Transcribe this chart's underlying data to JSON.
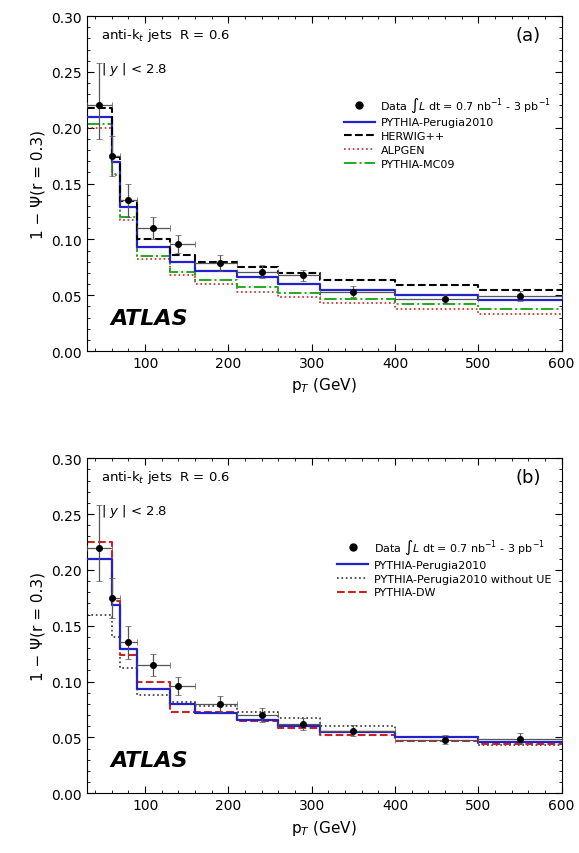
{
  "panel_a": {
    "label": "(a)",
    "data_x": [
      45,
      60,
      80,
      110,
      140,
      190,
      240,
      290,
      350,
      460,
      550
    ],
    "data_y": [
      0.22,
      0.175,
      0.135,
      0.11,
      0.096,
      0.079,
      0.071,
      0.068,
      0.053,
      0.047,
      0.049
    ],
    "data_yerr_lo": [
      0.03,
      0.018,
      0.015,
      0.01,
      0.008,
      0.007,
      0.006,
      0.005,
      0.005,
      0.004,
      0.004
    ],
    "data_yerr_hi": [
      0.038,
      0.018,
      0.015,
      0.01,
      0.008,
      0.007,
      0.006,
      0.005,
      0.005,
      0.004,
      0.005
    ],
    "bin_lo": [
      30,
      60,
      70,
      90,
      130,
      160,
      210,
      260,
      310,
      400,
      500
    ],
    "bin_hi": [
      60,
      70,
      90,
      130,
      160,
      210,
      260,
      310,
      400,
      500,
      600
    ],
    "pythia_bx": [
      30,
      60,
      60,
      70,
      70,
      90,
      90,
      130,
      130,
      160,
      160,
      210,
      210,
      260,
      260,
      310,
      310,
      400,
      400,
      500,
      500,
      600
    ],
    "pythia_by": [
      0.21,
      0.21,
      0.169,
      0.169,
      0.129,
      0.129,
      0.093,
      0.093,
      0.08,
      0.08,
      0.072,
      0.072,
      0.066,
      0.066,
      0.06,
      0.06,
      0.055,
      0.055,
      0.05,
      0.05,
      0.046,
      0.046
    ],
    "herwig_bx": [
      30,
      60,
      60,
      70,
      70,
      90,
      90,
      130,
      130,
      160,
      160,
      210,
      210,
      260,
      260,
      310,
      310,
      400,
      400,
      500,
      500,
      600
    ],
    "herwig_by": [
      0.218,
      0.218,
      0.174,
      0.174,
      0.134,
      0.134,
      0.1,
      0.1,
      0.086,
      0.086,
      0.08,
      0.08,
      0.075,
      0.075,
      0.07,
      0.07,
      0.064,
      0.064,
      0.059,
      0.059,
      0.055,
      0.055
    ],
    "alpgen_bx": [
      30,
      60,
      60,
      70,
      70,
      90,
      90,
      130,
      130,
      160,
      160,
      210,
      210,
      260,
      260,
      310,
      310,
      400,
      400,
      500,
      500,
      600
    ],
    "alpgen_by": [
      0.2,
      0.2,
      0.158,
      0.158,
      0.117,
      0.117,
      0.082,
      0.082,
      0.068,
      0.068,
      0.06,
      0.06,
      0.053,
      0.053,
      0.048,
      0.048,
      0.043,
      0.043,
      0.038,
      0.038,
      0.033,
      0.033
    ],
    "mc09_bx": [
      30,
      60,
      60,
      70,
      70,
      90,
      90,
      130,
      130,
      160,
      160,
      210,
      210,
      260,
      260,
      310,
      310,
      400,
      400,
      500,
      500,
      600
    ],
    "mc09_by": [
      0.203,
      0.203,
      0.159,
      0.159,
      0.12,
      0.12,
      0.085,
      0.085,
      0.071,
      0.071,
      0.064,
      0.064,
      0.057,
      0.057,
      0.052,
      0.052,
      0.047,
      0.047,
      0.042,
      0.042,
      0.038,
      0.038
    ]
  },
  "panel_b": {
    "label": "(b)",
    "data_x": [
      45,
      60,
      80,
      110,
      140,
      190,
      240,
      290,
      350,
      460,
      550
    ],
    "data_y": [
      0.22,
      0.175,
      0.135,
      0.115,
      0.096,
      0.08,
      0.07,
      0.062,
      0.056,
      0.048,
      0.049
    ],
    "data_yerr_lo": [
      0.03,
      0.018,
      0.015,
      0.01,
      0.008,
      0.007,
      0.006,
      0.005,
      0.005,
      0.004,
      0.004
    ],
    "data_yerr_hi": [
      0.038,
      0.018,
      0.015,
      0.01,
      0.008,
      0.007,
      0.006,
      0.005,
      0.005,
      0.004,
      0.005
    ],
    "bin_lo": [
      30,
      60,
      70,
      90,
      130,
      160,
      210,
      260,
      310,
      400,
      500
    ],
    "bin_hi": [
      60,
      70,
      90,
      130,
      160,
      210,
      260,
      310,
      400,
      500,
      600
    ],
    "pythia_bx": [
      30,
      60,
      60,
      70,
      70,
      90,
      90,
      130,
      130,
      160,
      160,
      210,
      210,
      260,
      260,
      310,
      310,
      400,
      400,
      500,
      500,
      600
    ],
    "pythia_by": [
      0.21,
      0.21,
      0.169,
      0.169,
      0.129,
      0.129,
      0.093,
      0.093,
      0.08,
      0.08,
      0.072,
      0.072,
      0.066,
      0.066,
      0.06,
      0.06,
      0.055,
      0.055,
      0.05,
      0.05,
      0.046,
      0.046
    ],
    "noue_bx": [
      30,
      60,
      60,
      70,
      70,
      90,
      90,
      130,
      130,
      160,
      160,
      210,
      210,
      260,
      260,
      310,
      310,
      400,
      400,
      500,
      500,
      600
    ],
    "noue_by": [
      0.16,
      0.16,
      0.14,
      0.14,
      0.112,
      0.112,
      0.088,
      0.088,
      0.082,
      0.082,
      0.078,
      0.078,
      0.073,
      0.073,
      0.067,
      0.067,
      0.06,
      0.06,
      0.05,
      0.05,
      0.043,
      0.043
    ],
    "dw_bx": [
      30,
      60,
      60,
      70,
      70,
      90,
      90,
      130,
      130,
      160,
      160,
      210,
      210,
      260,
      260,
      310,
      310,
      400,
      400,
      500,
      500,
      600
    ],
    "dw_by": [
      0.225,
      0.225,
      0.172,
      0.172,
      0.124,
      0.124,
      0.1,
      0.1,
      0.073,
      0.073,
      0.073,
      0.073,
      0.065,
      0.065,
      0.058,
      0.058,
      0.052,
      0.052,
      0.047,
      0.047,
      0.044,
      0.044
    ]
  },
  "colors": {
    "data": "#000000",
    "pythia": "#2222CC",
    "herwig": "#000000",
    "alpgen": "#CC2222",
    "mc09": "#22AA22",
    "noue": "#333333",
    "dw": "#CC2222"
  },
  "ylim": [
    0.0,
    0.3
  ],
  "xlim": [
    30,
    600
  ],
  "ylabel": "1 − Ψ(r = 0.3)",
  "xlabel_a": "p$_T$ (GeV)",
  "xlabel_b": "p$_T$ (GeV)"
}
